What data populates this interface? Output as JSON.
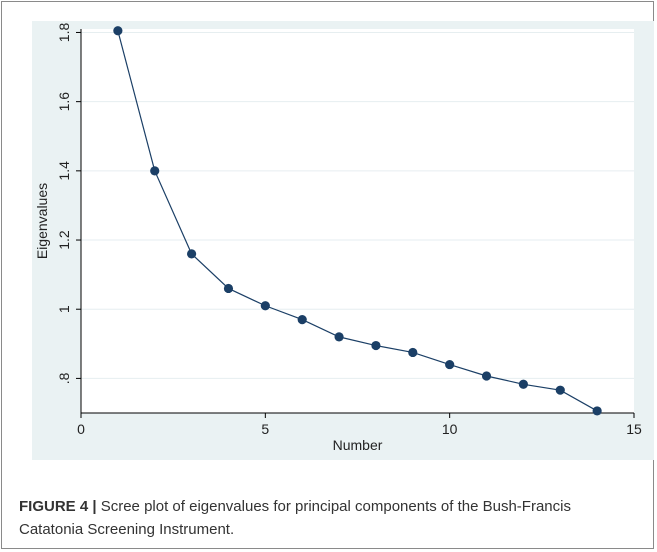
{
  "figure": {
    "caption_label": "FIGURE 4 |",
    "caption_text": " Scree plot of eigenvalues for principal components of the Bush-Francis Catatonia Screening Instrument."
  },
  "colors": {
    "plot_background": "#eaf2f3",
    "marker": "#1b3f66",
    "line": "#1b3f66",
    "grid": "#ffffff"
  },
  "chart_data": {
    "type": "line",
    "xlabel": "Number",
    "ylabel": "Eigenvalues",
    "xlim": [
      0,
      15
    ],
    "ylim": [
      0.7,
      1.81
    ],
    "xticks": [
      0,
      5,
      10,
      15
    ],
    "xtick_labels": [
      "0",
      "5",
      "10",
      "15"
    ],
    "yticks": [
      0.8,
      1.0,
      1.2,
      1.4,
      1.6,
      1.8
    ],
    "ytick_labels": [
      ".8",
      "1",
      "1.2",
      "1.4",
      "1.6",
      "1.8"
    ],
    "grid": true,
    "series": [
      {
        "x": [
          1,
          2,
          3,
          4,
          5,
          6,
          7,
          8,
          9,
          10,
          11,
          12,
          13,
          14
        ],
        "values": [
          1.805,
          1.4,
          1.16,
          1.06,
          1.01,
          0.97,
          0.92,
          0.895,
          0.875,
          0.84,
          0.807,
          0.783,
          0.766,
          0.706
        ]
      }
    ]
  }
}
